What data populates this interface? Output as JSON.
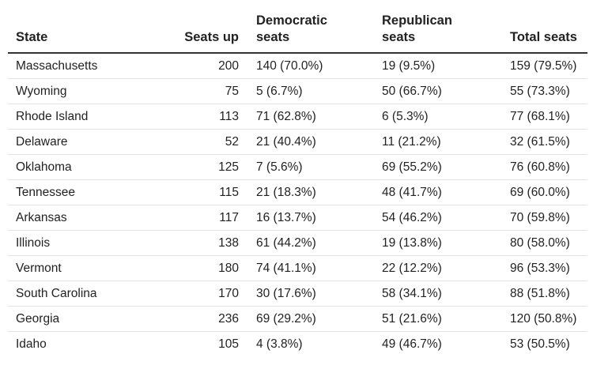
{
  "chart_data": {
    "type": "table",
    "columns": [
      "State",
      "Seats up",
      "Democratic seats",
      "Republican seats",
      "Total seats"
    ],
    "rows": [
      [
        "Massachusetts",
        "200",
        "140 (70.0%)",
        "19 (9.5%)",
        "159 (79.5%)"
      ],
      [
        "Wyoming",
        "75",
        "5 (6.7%)",
        "50 (66.7%)",
        "55 (73.3%)"
      ],
      [
        "Rhode Island",
        "113",
        "71 (62.8%)",
        "6 (5.3%)",
        "77 (68.1%)"
      ],
      [
        "Delaware",
        "52",
        "21 (40.4%)",
        "11 (21.2%)",
        "32 (61.5%)"
      ],
      [
        "Oklahoma",
        "125",
        "7 (5.6%)",
        "69 (55.2%)",
        "76 (60.8%)"
      ],
      [
        "Tennessee",
        "115",
        "21 (18.3%)",
        "48 (41.7%)",
        "69 (60.0%)"
      ],
      [
        "Arkansas",
        "117",
        "16 (13.7%)",
        "54 (46.2%)",
        "70 (59.8%)"
      ],
      [
        "Illinois",
        "138",
        "61 (44.2%)",
        "19 (13.8%)",
        "80 (58.0%)"
      ],
      [
        "Vermont",
        "180",
        "74 (41.1%)",
        "22 (12.2%)",
        "96 (53.3%)"
      ],
      [
        "South Carolina",
        "170",
        "30 (17.6%)",
        "58 (34.1%)",
        "88 (51.8%)"
      ],
      [
        "Georgia",
        "236",
        "69 (29.2%)",
        "51 (21.6%)",
        "120 (50.8%)"
      ],
      [
        "Idaho",
        "105",
        "4 (3.8%)",
        "49 (46.7%)",
        "53 (50.5%)"
      ]
    ]
  },
  "headers": {
    "state": "State",
    "seats_up": "Seats up",
    "dem_line1": "Democratic",
    "dem_line2": "seats",
    "rep_line1": "Republican",
    "rep_line2": "seats",
    "total": "Total seats"
  }
}
